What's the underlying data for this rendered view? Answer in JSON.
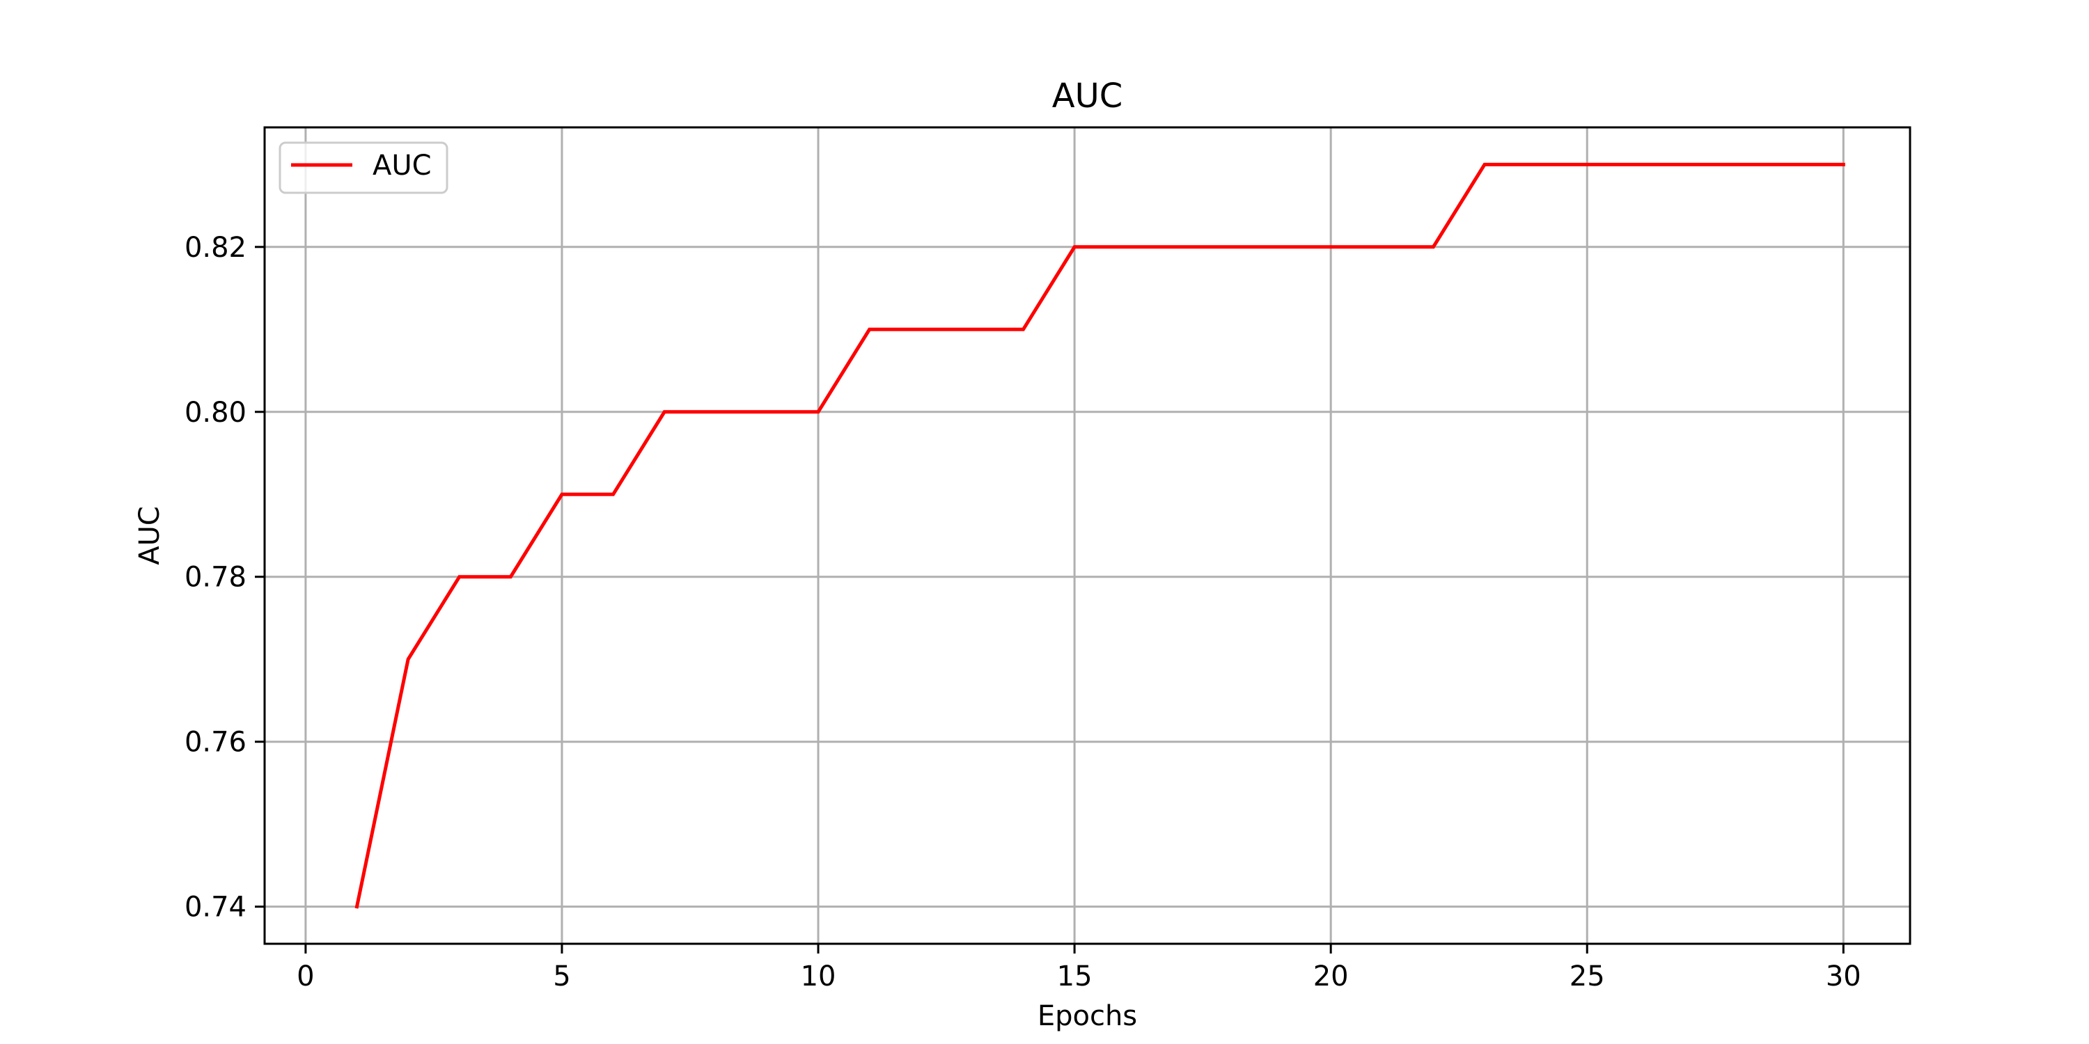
{
  "chart_data": {
    "type": "line",
    "title": "AUC",
    "xlabel": "Epochs",
    "ylabel": "AUC",
    "xlim": [
      -0.8,
      31.3
    ],
    "ylim": [
      0.7355,
      0.8345
    ],
    "xticks": [
      0,
      5,
      10,
      15,
      20,
      25,
      30
    ],
    "yticks": [
      0.74,
      0.76,
      0.78,
      0.8,
      0.82
    ],
    "ytick_labels": [
      "0.74",
      "0.76",
      "0.78",
      "0.80",
      "0.82"
    ],
    "grid": true,
    "legend_position": "upper-left",
    "series": [
      {
        "name": "AUC",
        "color": "#ff0000",
        "x": [
          1,
          2,
          3,
          4,
          5,
          6,
          7,
          8,
          9,
          10,
          11,
          12,
          13,
          14,
          15,
          16,
          17,
          18,
          19,
          20,
          21,
          22,
          23,
          24,
          25,
          26,
          27,
          28,
          29,
          30
        ],
        "y": [
          0.74,
          0.77,
          0.78,
          0.78,
          0.79,
          0.79,
          0.8,
          0.8,
          0.8,
          0.8,
          0.81,
          0.81,
          0.81,
          0.81,
          0.82,
          0.82,
          0.82,
          0.82,
          0.82,
          0.82,
          0.82,
          0.82,
          0.83,
          0.83,
          0.83,
          0.83,
          0.83,
          0.83,
          0.83,
          0.83
        ]
      }
    ]
  }
}
